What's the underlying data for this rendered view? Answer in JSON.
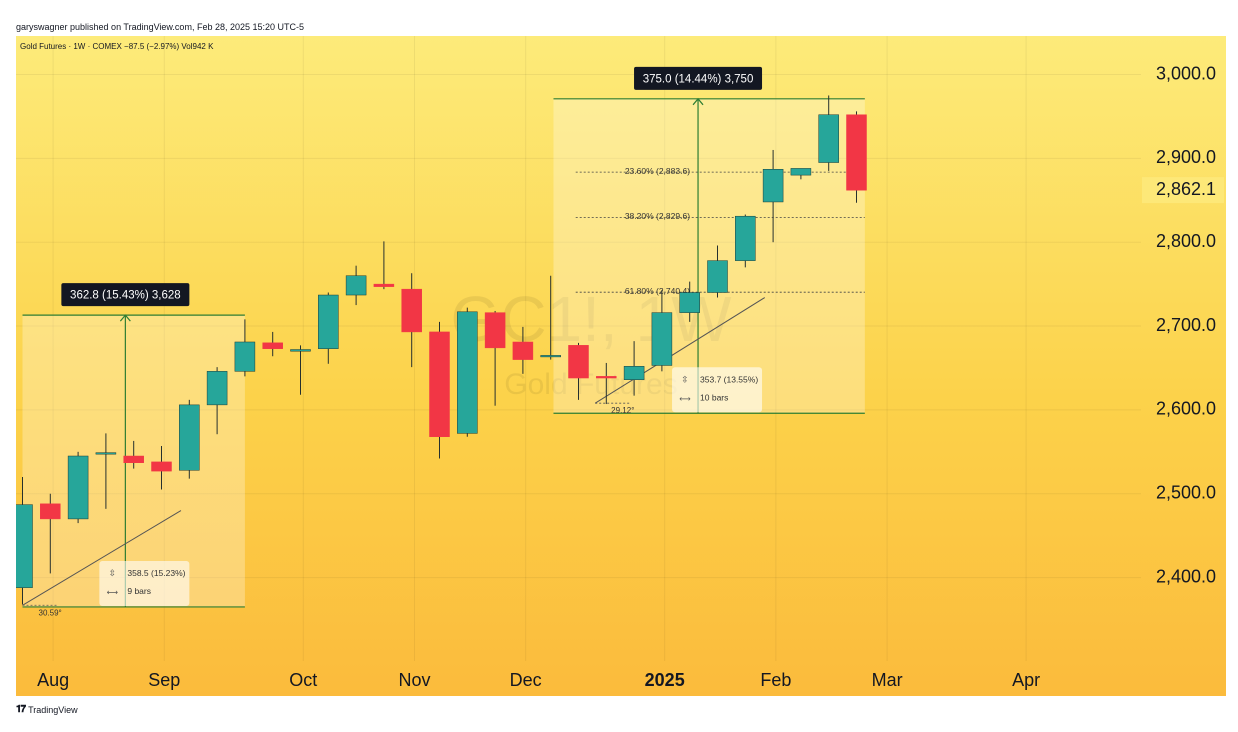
{
  "header": {
    "published": "garyswagner published on TradingView.com, Feb 28, 2025 15:20 UTC-5"
  },
  "footer": {
    "brand": "TradingView",
    "logo": "tradingview-logo-icon"
  },
  "chart_data": {
    "type": "candlestick",
    "instrument_line": "Gold Futures · 1W · COMEX  −87.5 (−2.97%)  Vol942 K",
    "watermark_symbol": "GC1!, 1W",
    "watermark_name": "Gold Futures",
    "price_axis": {
      "ticks": [
        3000,
        2900,
        2800,
        2700,
        2600,
        2500,
        2400
      ],
      "tick_labels": [
        "3,000.0",
        "2,900.0",
        "2,800.0",
        "2,700.0",
        "2,600.0",
        "2,500.0",
        "2,400.0"
      ],
      "range": [
        2300,
        3080
      ],
      "last_price": 2862.1,
      "last_price_label": "2,862.1"
    },
    "time_axis": {
      "labels": [
        {
          "label": "Aug",
          "week": 1.1,
          "bold": false
        },
        {
          "label": "Sep",
          "week": 5.1,
          "bold": false
        },
        {
          "label": "Oct",
          "week": 10.1,
          "bold": false
        },
        {
          "label": "Nov",
          "week": 14.1,
          "bold": false
        },
        {
          "label": "Dec",
          "week": 18.1,
          "bold": false
        },
        {
          "label": "2025",
          "week": 23.1,
          "bold": true
        },
        {
          "label": "Feb",
          "week": 27.1,
          "bold": false
        },
        {
          "label": "Mar",
          "week": 31.1,
          "bold": false
        },
        {
          "label": "Apr",
          "week": 36.1,
          "bold": false
        }
      ]
    },
    "candles": [
      {
        "o": 2388,
        "h": 2520,
        "l": 2368,
        "c": 2487
      },
      {
        "o": 2488,
        "h": 2500,
        "l": 2405,
        "c": 2470
      },
      {
        "o": 2470,
        "h": 2550,
        "l": 2465,
        "c": 2545
      },
      {
        "o": 2549,
        "h": 2572,
        "l": 2482,
        "c": 2549
      },
      {
        "o": 2545,
        "h": 2563,
        "l": 2530,
        "c": 2537
      },
      {
        "o": 2538,
        "h": 2557,
        "l": 2505,
        "c": 2527
      },
      {
        "o": 2528,
        "h": 2612,
        "l": 2518,
        "c": 2606
      },
      {
        "o": 2606,
        "h": 2651,
        "l": 2571,
        "c": 2646
      },
      {
        "o": 2646,
        "h": 2708,
        "l": 2640,
        "c": 2681
      },
      {
        "o": 2680,
        "h": 2693,
        "l": 2664,
        "c": 2673
      },
      {
        "o": 2670,
        "h": 2677,
        "l": 2618,
        "c": 2672
      },
      {
        "o": 2673,
        "h": 2740,
        "l": 2655,
        "c": 2737
      },
      {
        "o": 2737,
        "h": 2772,
        "l": 2725,
        "c": 2760
      },
      {
        "o": 2750,
        "h": 2801,
        "l": 2744,
        "c": 2747
      },
      {
        "o": 2744,
        "h": 2763,
        "l": 2651,
        "c": 2693
      },
      {
        "o": 2693,
        "h": 2705,
        "l": 2542,
        "c": 2568
      },
      {
        "o": 2572,
        "h": 2722,
        "l": 2568,
        "c": 2717
      },
      {
        "o": 2716,
        "h": 2718,
        "l": 2605,
        "c": 2674
      },
      {
        "o": 2681,
        "h": 2699,
        "l": 2643,
        "c": 2660
      },
      {
        "o": 2665,
        "h": 2760,
        "l": 2660,
        "c": 2665
      },
      {
        "o": 2677,
        "h": 2680,
        "l": 2612,
        "c": 2638
      },
      {
        "o": 2640,
        "h": 2656,
        "l": 2607,
        "c": 2638
      },
      {
        "o": 2636,
        "h": 2682,
        "l": 2617,
        "c": 2652
      },
      {
        "o": 2653,
        "h": 2743,
        "l": 2646,
        "c": 2716
      },
      {
        "o": 2716,
        "h": 2753,
        "l": 2705,
        "c": 2740
      },
      {
        "o": 2740,
        "h": 2796,
        "l": 2734,
        "c": 2778
      },
      {
        "o": 2778,
        "h": 2833,
        "l": 2770,
        "c": 2831
      },
      {
        "o": 2848,
        "h": 2910,
        "l": 2800,
        "c": 2887
      },
      {
        "o": 2880,
        "h": 2887,
        "l": 2875,
        "c": 2888
      },
      {
        "o": 2895,
        "h": 2975,
        "l": 2885,
        "c": 2952
      },
      {
        "o": 2952,
        "h": 2956,
        "l": 2847,
        "c": 2862
      }
    ],
    "measure_1": {
      "week_start": 0,
      "week_end": 8,
      "price_low": 2365,
      "price_high": 2713,
      "arrow_week": 3.7,
      "label": "362.8 (15.43%) 3,628",
      "stats_value": "358.5 (15.23%)",
      "stats_bars": "9 bars",
      "angle_label": "30.59°",
      "trend": {
        "w1": 0,
        "p1": 2367,
        "w2": 5.7,
        "p2": 2480
      }
    },
    "measure_2": {
      "week_start": 19.1,
      "week_end": 30.3,
      "price_low": 2596,
      "price_high": 2971,
      "arrow_week": 24.3,
      "label": "375.0 (14.44%) 3,750",
      "stats_value": "353.7 (13.55%)",
      "stats_bars": "10 bars",
      "angle_label": "29.12°",
      "trend": {
        "w1": 20.6,
        "p1": 2608,
        "w2": 26.7,
        "p2": 2734
      },
      "fib_levels": [
        {
          "label": "23.60% (2,883.6)",
          "price": 2883.6
        },
        {
          "label": "38.20% (2,829.6)",
          "price": 2829.6
        },
        {
          "label": "61.80% (2,740.4)",
          "price": 2740.4
        }
      ]
    },
    "colors": {
      "up": "#26a69a",
      "down": "#f23645",
      "measure": "#2e7d32",
      "label_bg": "#131722"
    }
  }
}
